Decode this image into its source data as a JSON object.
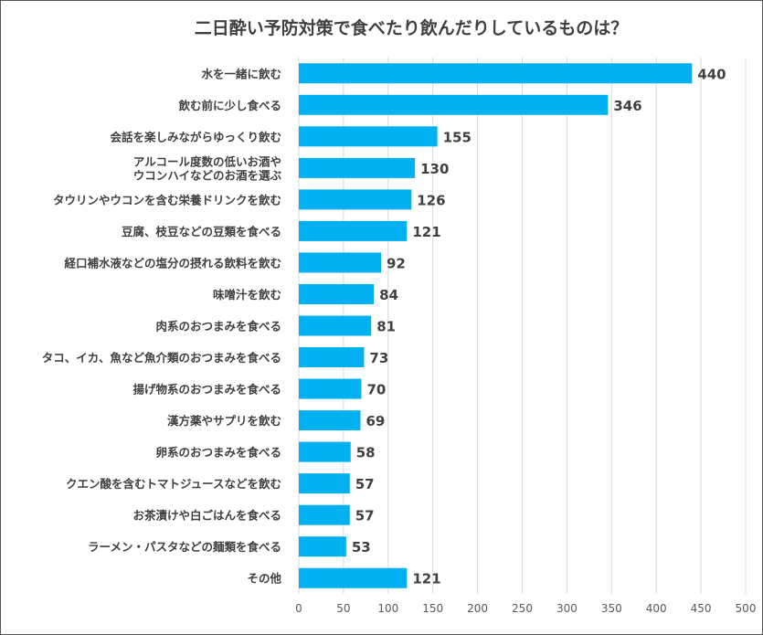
{
  "chart_data": {
    "type": "bar",
    "orientation": "horizontal",
    "title": "二日酔い予防対策で食べたり飲んだりしているものは？",
    "categories": [
      "水を一緒に飲む",
      "飲む前に少し食べる",
      "会話を楽しみながらゆっくり飲む",
      "アルコール度数の低いお酒や\nウコンハイなどのお酒を選ぶ",
      "タウリンやウコンを含む栄養ドリンクを飲む",
      "豆腐、枝豆などの豆類を食べる",
      "経口補水液などの塩分の摂れる飲料を飲む",
      "味噌汁を飲む",
      "肉系のおつまみを食べる",
      "タコ、イカ、魚など魚介類のおつまみを食べる",
      "揚げ物系のおつまみを食べる",
      "漢方薬やサプリを飲む",
      "卵系のおつまみを食べる",
      "クエン酸を含むトマトジュースなどを飲む",
      "お茶漬けや白ごはんを食べる",
      "ラーメン・パスタなどの麺類を食べる",
      "その他"
    ],
    "values": [
      440,
      346,
      155,
      130,
      126,
      121,
      92,
      84,
      81,
      73,
      70,
      69,
      58,
      57,
      57,
      53,
      121
    ],
    "xlim": [
      0,
      500
    ],
    "xticks": [
      "0",
      "50",
      "100",
      "150",
      "200",
      "250",
      "300",
      "350",
      "400",
      "450",
      "500"
    ],
    "grid": true,
    "data_labels": true,
    "bar_color": "#00B0F0",
    "grid_color": "#D9D9D9"
  }
}
